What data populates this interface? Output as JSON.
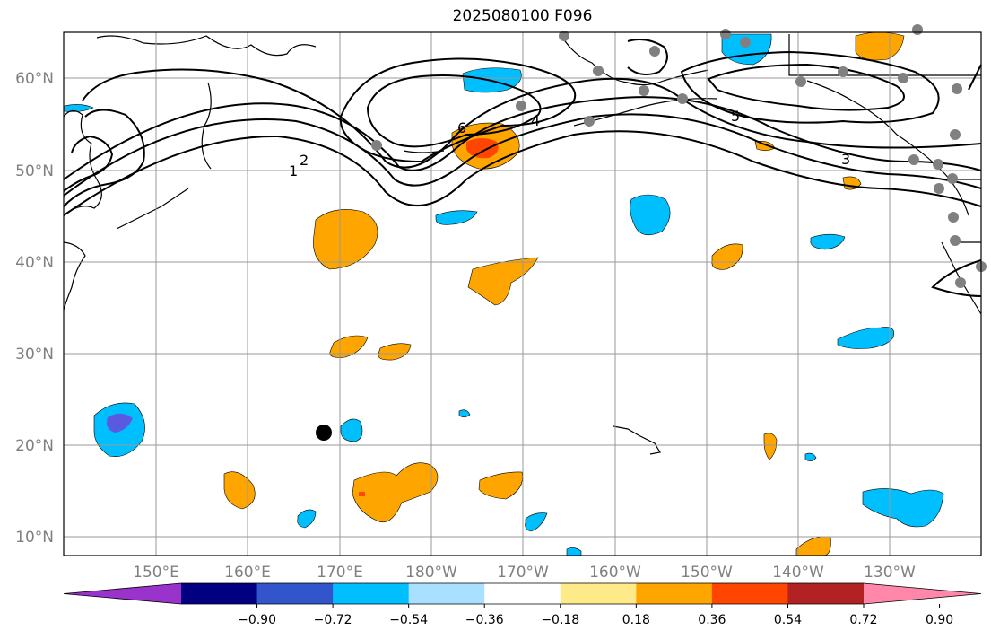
{
  "title": "2025080100 F096",
  "map": {
    "lat_labels": [
      "10°N",
      "20°N",
      "30°N",
      "40°N",
      "50°N",
      "60°N"
    ],
    "lon_labels": [
      "150°E",
      "160°E",
      "170°E",
      "180°W",
      "170°W",
      "160°W",
      "150°W",
      "140°W",
      "130°W"
    ],
    "contour_labels": [
      "1",
      "2",
      "3",
      "4",
      "5",
      "6"
    ],
    "grid": true
  },
  "colorbar": {
    "ticks": [
      "−0.90",
      "−0.72",
      "−0.54",
      "−0.36",
      "−0.18",
      "0.18",
      "0.36",
      "0.54",
      "0.72",
      "0.90"
    ],
    "colors": [
      "#9933cc",
      "#000080",
      "#3355cc",
      "#00bfff",
      "#aae0ff",
      "#ffffff",
      "#ffea8a",
      "#ffa500",
      "#ff4500",
      "#b22222",
      "#ff88aa"
    ]
  },
  "colors": {
    "positive": "#ffa500",
    "strong_positive": "#ff4500",
    "negative": "#00bfff",
    "strong_negative": "#3355cc",
    "station": "#808080",
    "marker": "#000000"
  }
}
